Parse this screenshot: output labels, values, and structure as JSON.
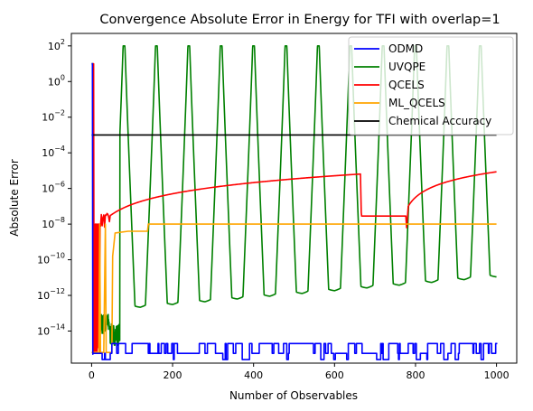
{
  "chart_data": {
    "type": "line",
    "title": "Convergence Absolute Error in Energy for TFI with overlap=1",
    "xlabel": "Number of Observables",
    "ylabel": "Absolute Error",
    "xlim": [
      -50,
      1050
    ],
    "ylim_log10": [
      -15.8,
      2.7
    ],
    "y_scale": "log",
    "x_ticks": [
      0,
      200,
      400,
      600,
      800,
      1000
    ],
    "y_ticks_exponents": [
      2,
      0,
      -2,
      -4,
      -6,
      -8,
      -10,
      -12,
      -14
    ],
    "grid": false,
    "legend_position": "top-right",
    "series": [
      {
        "name": "ODMD",
        "color": "#0000ff"
      },
      {
        "name": "UVQPE",
        "color": "#008000"
      },
      {
        "name": "QCELS",
        "color": "#ff0000"
      },
      {
        "name": "ML_QCELS",
        "color": "#ffa500"
      },
      {
        "name": "Chemical Accuracy",
        "color": "#000000",
        "value": 0.001
      }
    ]
  }
}
